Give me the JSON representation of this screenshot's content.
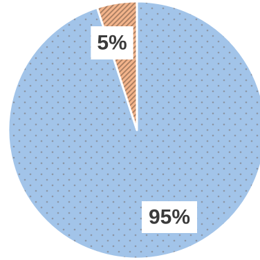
{
  "chart_data": {
    "type": "pie",
    "title": "",
    "slices": [
      {
        "value": 95,
        "label": "95%",
        "color": "#a2c4e9",
        "pattern": "dots",
        "pattern_color": "#8c97a7"
      },
      {
        "value": 5,
        "label": "5%",
        "color": "#f3b48b",
        "pattern": "diagonal-stripes",
        "pattern_color": "#a77c60"
      }
    ],
    "start": "12 o'clock",
    "direction": "clockwise",
    "legend": "none"
  }
}
